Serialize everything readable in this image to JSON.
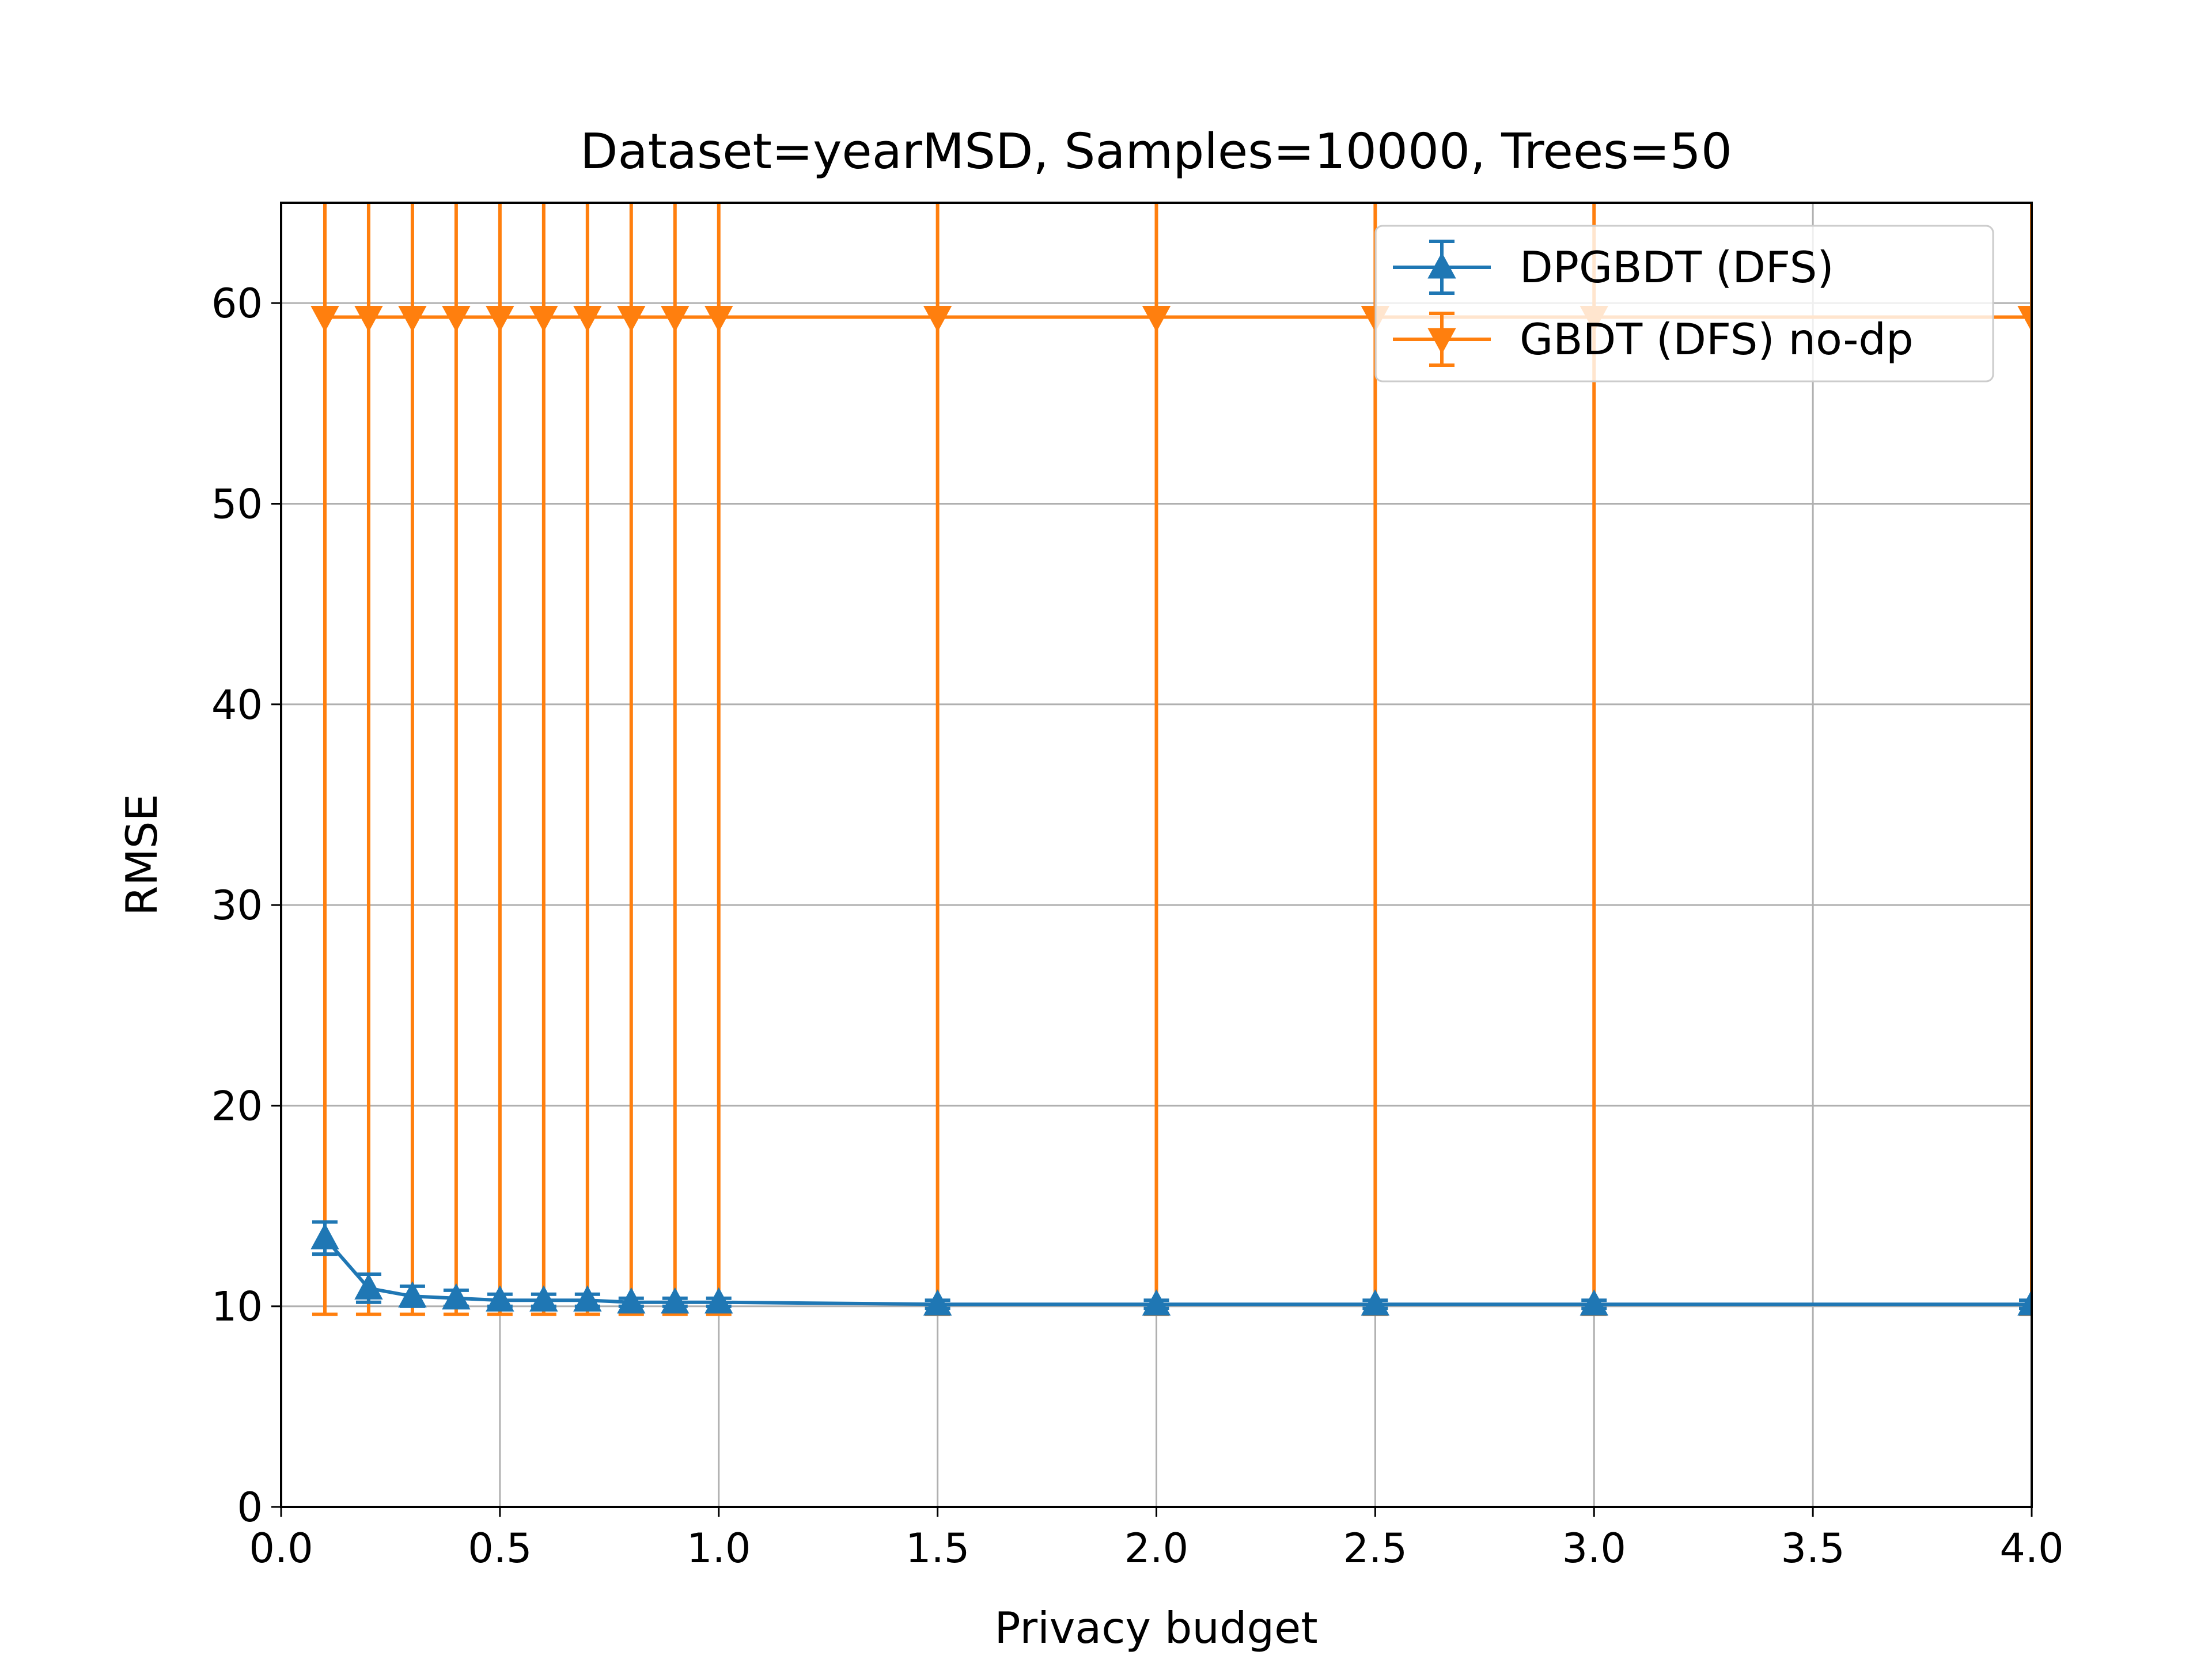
{
  "chart_data": {
    "type": "line",
    "title": "Dataset=yearMSD, Samples=10000, Trees=50",
    "xlabel": "Privacy budget",
    "ylabel": "RMSE",
    "xlim": [
      0.0,
      4.0
    ],
    "ylim": [
      0,
      65
    ],
    "x_ticks": [
      "0.0",
      "0.5",
      "1.0",
      "1.5",
      "2.0",
      "2.5",
      "3.0",
      "3.5",
      "4.0"
    ],
    "y_ticks": [
      "0",
      "10",
      "20",
      "30",
      "40",
      "50",
      "60"
    ],
    "grid": true,
    "legend_position": "top-right",
    "x": [
      0.1,
      0.2,
      0.3,
      0.4,
      0.5,
      0.6,
      0.7,
      0.8,
      0.9,
      1.0,
      1.5,
      2.0,
      2.5,
      3.0,
      4.0
    ],
    "series": [
      {
        "name": "DPGBDT (DFS)",
        "color": "#1f77b4",
        "marker": "triangle-up",
        "values": [
          13.4,
          10.9,
          10.5,
          10.4,
          10.3,
          10.3,
          10.3,
          10.2,
          10.2,
          10.2,
          10.1,
          10.1,
          10.1,
          10.1,
          10.1
        ],
        "error": [
          0.8,
          0.7,
          0.5,
          0.4,
          0.3,
          0.3,
          0.3,
          0.2,
          0.2,
          0.2,
          0.2,
          0.2,
          0.2,
          0.2,
          0.2
        ]
      },
      {
        "name": "GBDT (DFS) no-dp",
        "color": "#ff7f0e",
        "marker": "triangle-down",
        "values": [
          59.3,
          59.3,
          59.3,
          59.3,
          59.3,
          59.3,
          59.3,
          59.3,
          59.3,
          59.3,
          59.3,
          59.3,
          59.3,
          59.3,
          59.3
        ],
        "error": [
          49.7,
          49.7,
          49.7,
          49.7,
          49.7,
          49.7,
          49.7,
          49.7,
          49.7,
          49.7,
          49.7,
          49.7,
          49.7,
          49.7,
          49.7
        ]
      }
    ]
  }
}
